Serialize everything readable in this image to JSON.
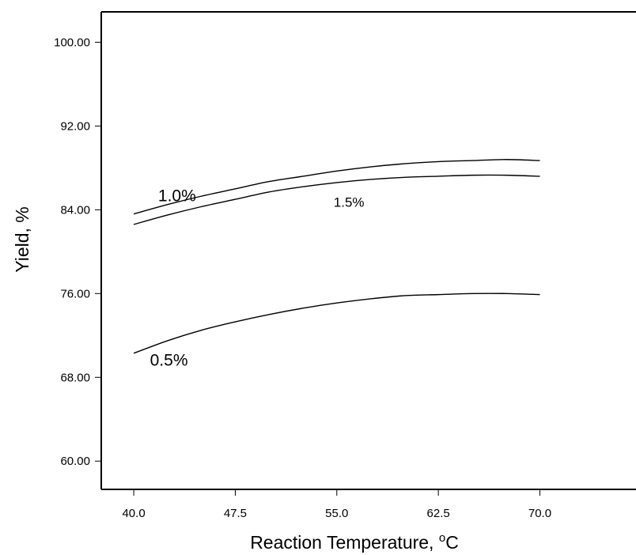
{
  "chart_data": {
    "type": "line",
    "title": "",
    "xlabel": "Reaction Temperature, ",
    "xlabel_unit_sup": "o",
    "xlabel_unit": "C",
    "ylabel": "Yield, %",
    "xlim": [
      37.6,
      77.1
    ],
    "ylim": [
      57.3,
      102.9
    ],
    "x_ticks": [
      "40.0",
      "47.5",
      "55.0",
      "62.5",
      "70.0"
    ],
    "x_tick_values": [
      40.0,
      47.5,
      55.0,
      62.5,
      70.0
    ],
    "y_ticks": [
      "100.00",
      "92.00",
      "84.00",
      "76.00",
      "68.00",
      "60.00"
    ],
    "y_tick_values": [
      100.0,
      92.0,
      84.0,
      76.0,
      68.0,
      60.0
    ],
    "grid": false,
    "legend": "none",
    "series": [
      {
        "name": "1.0%",
        "x": [
          40.0,
          42.5,
          45.0,
          47.5,
          50.0,
          52.5,
          55.0,
          57.5,
          60.0,
          62.5,
          65.0,
          67.5,
          70.0
        ],
        "y": [
          83.6,
          84.5,
          85.3,
          86.0,
          86.7,
          87.2,
          87.7,
          88.1,
          88.4,
          88.6,
          88.7,
          88.8,
          88.7
        ]
      },
      {
        "name": "1.5%",
        "x": [
          40.0,
          42.5,
          45.0,
          47.5,
          50.0,
          52.5,
          55.0,
          57.5,
          60.0,
          62.5,
          65.0,
          67.5,
          70.0
        ],
        "y": [
          82.6,
          83.5,
          84.3,
          85.0,
          85.7,
          86.2,
          86.6,
          86.9,
          87.1,
          87.2,
          87.3,
          87.3,
          87.2
        ]
      },
      {
        "name": "0.5%",
        "x": [
          40.0,
          42.5,
          45.0,
          47.5,
          50.0,
          52.5,
          55.0,
          57.5,
          60.0,
          62.5,
          65.0,
          67.5,
          70.0
        ],
        "y": [
          70.3,
          71.5,
          72.5,
          73.3,
          74.0,
          74.6,
          75.1,
          75.5,
          75.8,
          75.9,
          76.0,
          76.0,
          75.9
        ]
      }
    ],
    "annotations": [
      {
        "text": "1.0%",
        "x": 43.2,
        "y": 84.8
      },
      {
        "text": "1.5%",
        "x": 55.9,
        "y": 84.3
      },
      {
        "text": "0.5%",
        "x": 42.6,
        "y": 69.1
      }
    ]
  }
}
